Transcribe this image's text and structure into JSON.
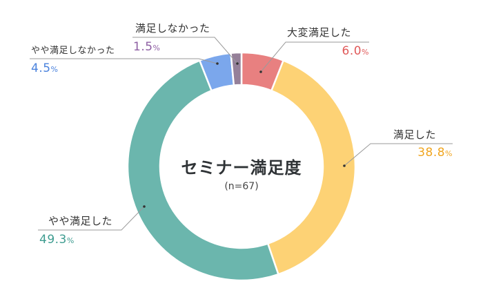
{
  "chart_data": {
    "type": "pie",
    "variant": "donut",
    "title": "セミナー満足度",
    "subtitle": "(n=67)",
    "unit": "%",
    "categories": [
      "大変満足した",
      "満足した",
      "やや満足した",
      "やや満足しなかった",
      "満足しなかった"
    ],
    "values": [
      6.0,
      38.8,
      49.3,
      4.5,
      1.5
    ],
    "colors": [
      "#E88080",
      "#FDD275",
      "#6BB6AD",
      "#7BA7EC",
      "#958099"
    ],
    "label_colors": [
      "#E05A5A",
      "#F0A51F",
      "#3E9C90",
      "#4A82DD",
      "#8E5FA3"
    ],
    "start_angle": "12 o'clock, clockwise",
    "legend": "none (callout labels)"
  },
  "center": {
    "title": "セミナー満足度",
    "subtitle": "(n=67)"
  },
  "labels": [
    {
      "name": "大変満足した",
      "value": "6.0",
      "unit": "%"
    },
    {
      "name": "満足した",
      "value": "38.8",
      "unit": "%"
    },
    {
      "name": "やや満足した",
      "value": "49.3",
      "unit": "%"
    },
    {
      "name": "やや満足しなかった",
      "value": "4.5",
      "unit": "%"
    },
    {
      "name": "満足しなかった",
      "value": "1.5",
      "unit": "%"
    }
  ]
}
